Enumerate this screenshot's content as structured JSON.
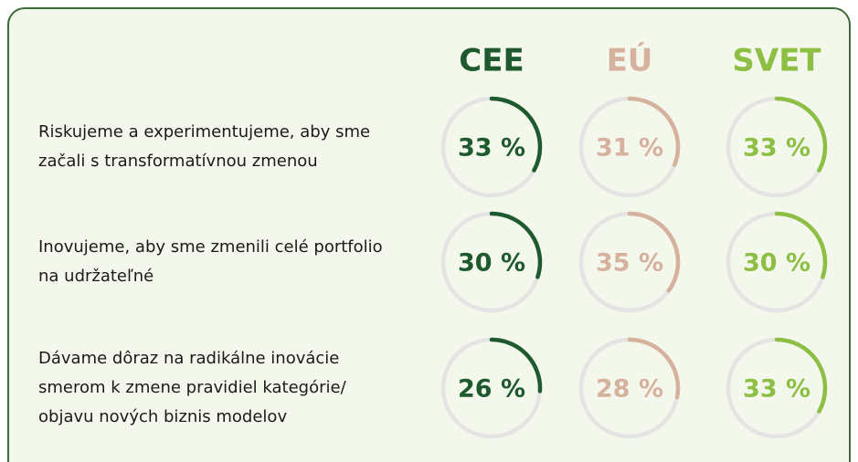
{
  "chart_data": {
    "type": "progress-ring",
    "categories": [
      [
        "Riskujeme a experimentujeme, aby sme",
        "začali s transformatívnou zmenou"
      ],
      [
        "Inovujeme, aby sme zmenili celé portfolio",
        "na udržateľné"
      ],
      [
        "Dávame dôraz na radikálne inovácie",
        "smerom k zmene pravidiel kategórie/",
        "objavu nových biznis modelov"
      ]
    ],
    "series": [
      {
        "name": "CEE",
        "color": "#1f5a2f",
        "values": [
          33,
          30,
          26
        ],
        "value_labels": [
          "33 %",
          "30 %",
          "26 %"
        ]
      },
      {
        "name": "EÚ",
        "color": "#d6b19e",
        "values": [
          31,
          35,
          28
        ],
        "value_labels": [
          "31 %",
          "35 %",
          "28 %"
        ]
      },
      {
        "name": "SVET",
        "color": "#8cbf44",
        "values": [
          33,
          30,
          33
        ],
        "value_labels": [
          "33 %",
          "30 %",
          "33 %"
        ]
      }
    ],
    "ylim": [
      0,
      100
    ]
  }
}
